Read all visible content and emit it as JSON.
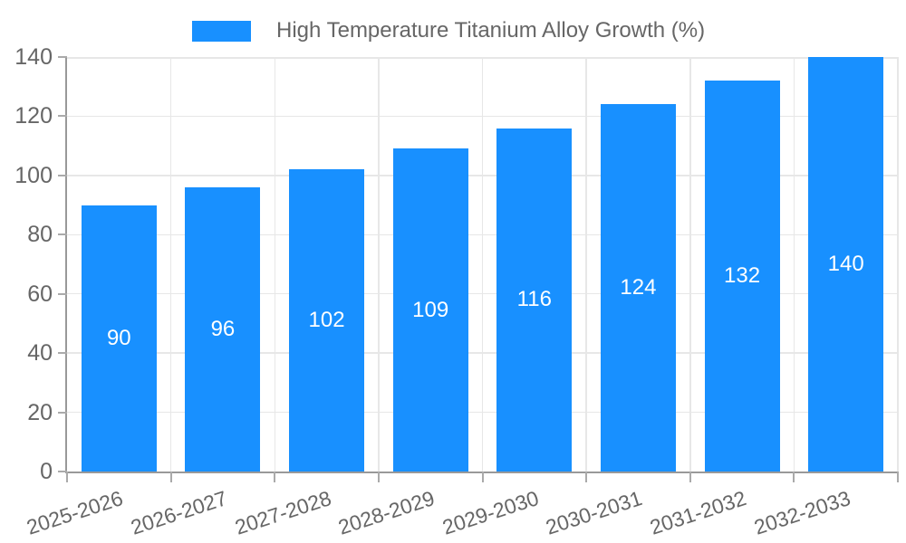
{
  "legend": {
    "label": "High Temperature Titanium Alloy Growth (%)"
  },
  "chart_data": {
    "type": "bar",
    "title": "",
    "xlabel": "",
    "ylabel": "",
    "categories": [
      "2025-2026",
      "2026-2027",
      "2027-2028",
      "2028-2029",
      "2029-2030",
      "2030-2031",
      "2031-2032",
      "2032-2033"
    ],
    "series": [
      {
        "name": "High Temperature Titanium Alloy Growth (%)",
        "values": [
          90,
          96,
          102,
          109,
          116,
          124,
          132,
          140
        ]
      }
    ],
    "value_labels_shown": true,
    "ylim": [
      0,
      140
    ],
    "ytick_step": 20,
    "ytick_labels": [
      "0",
      "20",
      "40",
      "60",
      "80",
      "100",
      "120",
      "140"
    ],
    "grid": true,
    "legend_position": "top",
    "colors": {
      "bar": "#1890ff",
      "grid": "#e7e7e7",
      "axis": "#999999",
      "tick": "#aaaaaa",
      "text": "#666666",
      "value_label": "#ffffff",
      "background": "#ffffff"
    }
  }
}
